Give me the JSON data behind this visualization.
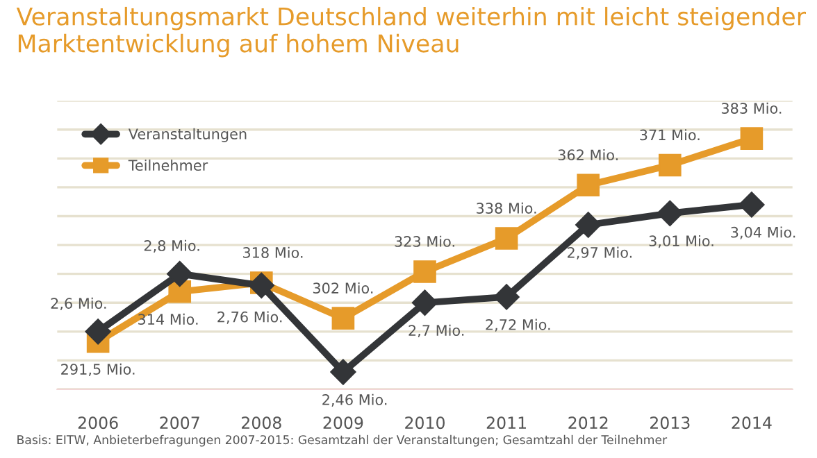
{
  "chart_data": {
    "type": "line",
    "title": "Veranstaltungsmarkt Deutschland weiterhin mit leicht steigender Marktentwicklung auf hohem Niveau",
    "categories": [
      "2006",
      "2007",
      "2008",
      "2009",
      "2010",
      "2011",
      "2012",
      "2013",
      "2014"
    ],
    "series": [
      {
        "name": "Veranstaltungen",
        "color": "#333538",
        "marker": "diamond",
        "axis": "y2",
        "values": [
          2.6,
          2.8,
          2.76,
          2.46,
          2.7,
          2.72,
          2.97,
          3.01,
          3.04
        ],
        "value_labels": [
          "2,6 Mio.",
          "2,8 Mio.",
          "2,76 Mio.",
          "2,46 Mio.",
          "2,7 Mio.",
          "2,72 Mio.",
          "2,97 Mio.",
          "3,01 Mio.",
          "3,04 Mio."
        ]
      },
      {
        "name": "Teilnehmer",
        "color": "#e69b2a",
        "marker": "square",
        "values": [
          291.5,
          314,
          318,
          302,
          323,
          338,
          362,
          371,
          383
        ],
        "value_labels": [
          "291,5 Mio.",
          "314 Mio.",
          "318 Mio.",
          "302 Mio.",
          "323 Mio.",
          "338 Mio.",
          "362 Mio.",
          "371 Mio.",
          "383 Mio."
        ]
      }
    ],
    "ylim": [
      270,
      400
    ],
    "yticks": [
      {
        "value": 270,
        "label": null
      },
      {
        "value": 283,
        "label": null
      },
      {
        "value": 296,
        "label": null
      },
      {
        "value": 309,
        "label": null
      },
      {
        "value": 322,
        "label": null
      },
      {
        "value": 335,
        "label": null
      },
      {
        "value": 348,
        "label": null
      },
      {
        "value": 361,
        "label": null
      },
      {
        "value": 374,
        "label": null
      },
      {
        "value": 387,
        "label": null
      },
      {
        "value": 400,
        "label": null
      }
    ],
    "y2lim": [
      2.4,
      3.4
    ],
    "tick_labels": "x",
    "grid": "y",
    "legend": "top left",
    "annotations": [
      "Basis: EITW, Anbieterbefragungen 2007-2015: Gesamtzahl der Veranstaltungen; Gesamtzahl der Teilnehmer"
    ]
  }
}
